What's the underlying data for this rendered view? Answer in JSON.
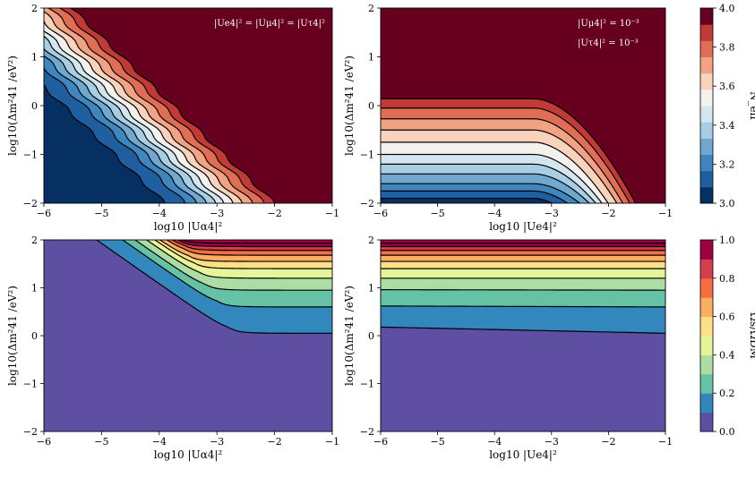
{
  "chart_data": [
    {
      "id": "top-left",
      "type": "contour",
      "xlabel": "log10 |Uα4|²",
      "ylabel": "log10(Δm²41 /eV²)",
      "xlim": [
        -6,
        -1
      ],
      "ylim": [
        -2,
        2
      ],
      "xticks": [
        "−6",
        "−5",
        "−4",
        "−3",
        "−2",
        "−1"
      ],
      "yticks": [
        "−2",
        "−1",
        "0",
        "1",
        "2"
      ],
      "annotation": [
        "|Ue4|² = |Uμ4|² = |Uτ4|²"
      ],
      "quantity": "N_eff",
      "contour_model": "diagonal",
      "band_edges_at_ymin": [
        -3.9,
        -3.55,
        -3.35,
        -3.18,
        -3.02,
        -2.88,
        -2.72,
        -2.56,
        -2.38,
        -2.18,
        -2.0
      ],
      "slope_dx_per_dy": -0.88
    },
    {
      "id": "top-right",
      "type": "contour",
      "xlabel": "log10 |Ue4|²",
      "ylabel": "log10(Δm²41 /eV²)",
      "xlim": [
        -6,
        -1
      ],
      "ylim": [
        -2,
        2
      ],
      "xticks": [
        "−6",
        "−5",
        "−4",
        "−3",
        "−2",
        "−1"
      ],
      "yticks": [
        "−2",
        "−1",
        "0",
        "1",
        "2"
      ],
      "annotation": [
        "|Uμ4|² = 10⁻³",
        "|Uτ4|² = 10⁻³"
      ],
      "quantity": "N_eff",
      "contour_model": "plateau",
      "plateau_levels": [
        -1.9,
        -1.75,
        -1.6,
        -1.4,
        -1.2,
        -1.0,
        -0.75,
        -0.5,
        -0.27,
        -0.05,
        0.14
      ],
      "curve_x_start": -3.3,
      "curve_x_end_at_ymin": [
        -2.85,
        -2.6,
        -2.4,
        -2.25,
        -2.15,
        -2.05,
        -1.95,
        -1.8,
        -1.7,
        -1.58,
        -1.48
      ]
    },
    {
      "id": "bottom-left",
      "type": "contour",
      "xlabel": "log10 |Uα4|²",
      "ylabel": "log10(Δm²41 /eV²)",
      "xlim": [
        -6,
        -1
      ],
      "ylim": [
        -2,
        2
      ],
      "xticks": [
        "−6",
        "−5",
        "−4",
        "−3",
        "−2",
        "−1"
      ],
      "yticks": [
        "−2",
        "−1",
        "0",
        "1",
        "2"
      ],
      "quantity": "Omega_s/Omega_DM",
      "contour_model": "knee",
      "plateau_levels": [
        0.05,
        0.6,
        0.95,
        1.2,
        1.4,
        1.55,
        1.68,
        1.78,
        1.86,
        1.93
      ],
      "knee_x": [
        -2.8,
        -3.0,
        -3.2,
        -3.3,
        -3.4,
        -3.5,
        -3.55,
        -3.6,
        -3.65,
        -3.7
      ],
      "diag_slope_dy_per_dx": -0.85
    },
    {
      "id": "bottom-right",
      "type": "contour",
      "xlabel": "log10 |Ue4|²",
      "ylabel": "log10(Δm²41 /eV²)",
      "xlim": [
        -6,
        -1
      ],
      "ylim": [
        -2,
        2
      ],
      "xticks": [
        "−6",
        "−5",
        "−4",
        "−3",
        "−2",
        "−1"
      ],
      "yticks": [
        "−2",
        "−1",
        "0",
        "1",
        "2"
      ],
      "quantity": "Omega_s/Omega_DM",
      "contour_model": "flat",
      "levels_left": [
        0.18,
        0.62,
        0.96,
        1.2,
        1.4,
        1.55,
        1.68,
        1.78,
        1.86,
        1.93
      ],
      "levels_right": [
        0.05,
        0.6,
        0.95,
        1.2,
        1.4,
        1.55,
        1.68,
        1.78,
        1.86,
        1.93
      ]
    }
  ],
  "colorbars": [
    {
      "id": "neff",
      "label": "N_eff",
      "range": [
        3.0,
        4.0
      ],
      "ticks": [
        "3.0",
        "3.2",
        "3.4",
        "3.6",
        "3.8",
        "4.0"
      ],
      "colors": [
        "#053061",
        "#1f5fa0",
        "#3e86bd",
        "#70a9d0",
        "#a8cee4",
        "#d4e6f0",
        "#f4f2ee",
        "#f9d3bc",
        "#f2a383",
        "#e06e55",
        "#c23a36",
        "#67001f"
      ]
    },
    {
      "id": "omega",
      "label": "Ωs/ΩDM",
      "range": [
        0.0,
        1.0
      ],
      "ticks": [
        "0.0",
        "0.2",
        "0.4",
        "0.6",
        "0.8",
        "1.0"
      ],
      "colors": [
        "#5e4fa2",
        "#3288bd",
        "#66c2a5",
        "#abdda4",
        "#e6f598",
        "#fee08b",
        "#fdae61",
        "#f46d43",
        "#d53e4f",
        "#9e0142"
      ]
    }
  ]
}
